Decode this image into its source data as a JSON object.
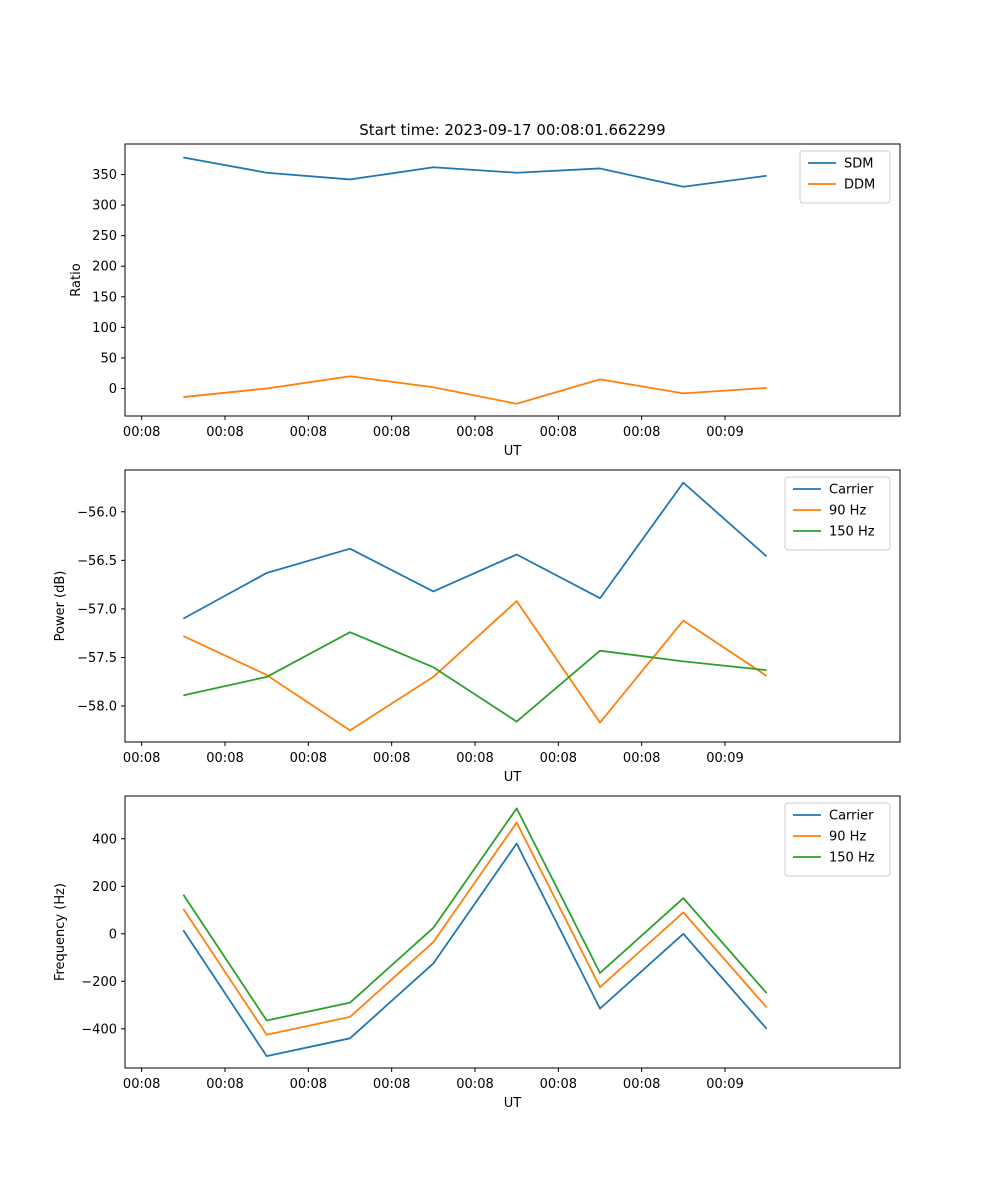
{
  "chart_data": [
    {
      "type": "line",
      "title": "Start time: 2023-09-17 00:08:01.662299",
      "xlabel": "UT",
      "ylabel": "Ratio",
      "x_tick_labels": [
        "00:08",
        "00:08",
        "00:08",
        "00:08",
        "00:08",
        "00:08",
        "00:08",
        "00:09"
      ],
      "x": [
        0.5,
        1.5,
        2.5,
        3.5,
        4.5,
        5.5,
        6.5,
        7.5
      ],
      "xlim": [
        -0.2,
        9.1
      ],
      "ylim": [
        -45,
        400
      ],
      "yticks": [
        0,
        50,
        100,
        150,
        200,
        250,
        300,
        350
      ],
      "legend": "top-right",
      "series": [
        {
          "name": "SDM",
          "color": "#1f77b4",
          "values": [
            378,
            353,
            342,
            362,
            353,
            360,
            330,
            348
          ]
        },
        {
          "name": "DDM",
          "color": "#ff7f0e",
          "values": [
            -14,
            0,
            20,
            2,
            -25,
            15,
            -8,
            1
          ]
        }
      ]
    },
    {
      "type": "line",
      "title": "",
      "xlabel": "UT",
      "ylabel": "Power (dB)",
      "x_tick_labels": [
        "00:08",
        "00:08",
        "00:08",
        "00:08",
        "00:08",
        "00:08",
        "00:08",
        "00:09"
      ],
      "x": [
        0.5,
        1.5,
        2.5,
        3.5,
        4.5,
        5.5,
        6.5,
        7.5
      ],
      "xlim": [
        -0.2,
        9.1
      ],
      "ylim": [
        -58.37,
        -55.57
      ],
      "yticks": [
        -58.0,
        -57.5,
        -57.0,
        -56.5,
        -56.0
      ],
      "legend": "top-right",
      "series": [
        {
          "name": "Carrier",
          "color": "#1f77b4",
          "values": [
            -57.1,
            -56.63,
            -56.38,
            -56.82,
            -56.44,
            -56.89,
            -55.7,
            -56.46
          ]
        },
        {
          "name": "90 Hz",
          "color": "#ff7f0e",
          "values": [
            -57.28,
            -57.68,
            -58.25,
            -57.7,
            -56.92,
            -58.17,
            -57.12,
            -57.69
          ]
        },
        {
          "name": "150 Hz",
          "color": "#2ca02c",
          "values": [
            -57.89,
            -57.7,
            -57.24,
            -57.6,
            -58.16,
            -57.43,
            -57.54,
            -57.63
          ]
        }
      ]
    },
    {
      "type": "line",
      "title": "",
      "xlabel": "UT",
      "ylabel": "Frequency (Hz)",
      "x_tick_labels": [
        "00:08",
        "00:08",
        "00:08",
        "00:08",
        "00:08",
        "00:08",
        "00:08",
        "00:09"
      ],
      "x": [
        0.5,
        1.5,
        2.5,
        3.5,
        4.5,
        5.5,
        6.5,
        7.5
      ],
      "xlim": [
        -0.2,
        9.1
      ],
      "ylim": [
        -565,
        580
      ],
      "yticks": [
        -400,
        -200,
        0,
        200,
        400
      ],
      "legend": "top-right",
      "series": [
        {
          "name": "Carrier",
          "color": "#1f77b4",
          "values": [
            15,
            -515,
            -440,
            -125,
            380,
            -315,
            0,
            -400
          ]
        },
        {
          "name": "90 Hz",
          "color": "#ff7f0e",
          "values": [
            105,
            -425,
            -350,
            -35,
            468,
            -225,
            90,
            -310
          ]
        },
        {
          "name": "150 Hz",
          "color": "#2ca02c",
          "values": [
            165,
            -365,
            -290,
            25,
            528,
            -165,
            150,
            -250
          ]
        }
      ]
    }
  ]
}
